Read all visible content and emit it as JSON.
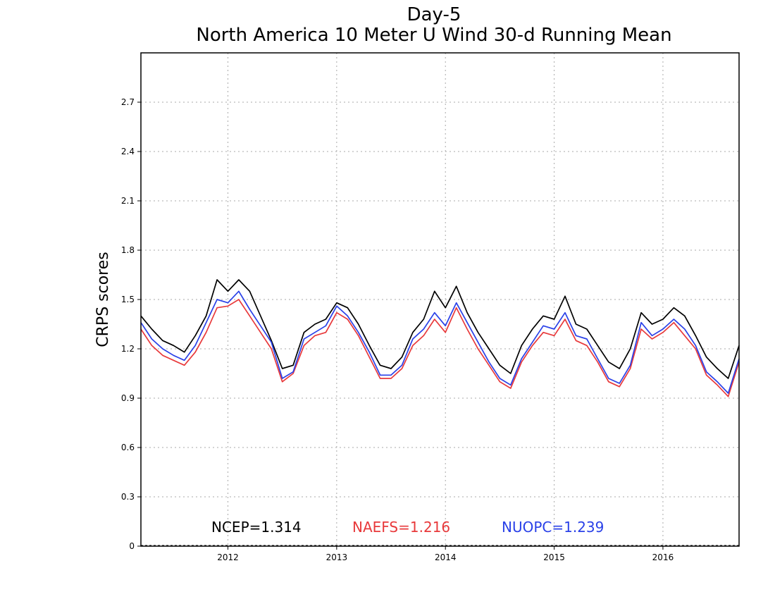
{
  "chart_data": {
    "type": "line",
    "title": "Day-5",
    "subtitle": "North America 10 Meter U Wind 30-d Running Mean",
    "xlabel": "",
    "ylabel": "CRPS scores",
    "x_tick_labels": [
      "2012",
      "2013",
      "2014",
      "2015",
      "2016"
    ],
    "x_tick_values": [
      2012.0,
      2013.0,
      2014.0,
      2015.0,
      2016.0
    ],
    "xlim": [
      2011.2,
      2016.7
    ],
    "ylim": [
      0,
      3.0
    ],
    "y_tick_labels": [
      "0",
      "0.3",
      "0.6",
      "0.9",
      "1.2",
      "1.5",
      "1.8",
      "2.1",
      "2.4",
      "2.7"
    ],
    "y_tick_values": [
      0,
      0.3,
      0.6,
      0.9,
      1.2,
      1.5,
      1.8,
      2.1,
      2.4,
      2.7
    ],
    "grid": true,
    "legend_placement": "bottom",
    "x": [
      2011.2,
      2011.3,
      2011.4,
      2011.5,
      2011.6,
      2011.7,
      2011.8,
      2011.9,
      2012.0,
      2012.1,
      2012.2,
      2012.3,
      2012.4,
      2012.5,
      2012.6,
      2012.7,
      2012.8,
      2012.9,
      2013.0,
      2013.1,
      2013.2,
      2013.3,
      2013.4,
      2013.5,
      2013.6,
      2013.7,
      2013.8,
      2013.9,
      2014.0,
      2014.1,
      2014.2,
      2014.3,
      2014.4,
      2014.5,
      2014.6,
      2014.7,
      2014.8,
      2014.9,
      2015.0,
      2015.1,
      2015.2,
      2015.3,
      2015.4,
      2015.5,
      2015.6,
      2015.7,
      2015.8,
      2015.9,
      2016.0,
      2016.1,
      2016.2,
      2016.3,
      2016.4,
      2016.5,
      2016.6,
      2016.7
    ],
    "series": [
      {
        "name": "NCEP",
        "color": "#000000",
        "values": [
          1.4,
          1.32,
          1.25,
          1.22,
          1.18,
          1.28,
          1.4,
          1.62,
          1.55,
          1.62,
          1.55,
          1.4,
          1.25,
          1.08,
          1.1,
          1.3,
          1.35,
          1.38,
          1.48,
          1.45,
          1.35,
          1.22,
          1.1,
          1.08,
          1.15,
          1.3,
          1.38,
          1.55,
          1.45,
          1.58,
          1.42,
          1.3,
          1.2,
          1.1,
          1.05,
          1.22,
          1.32,
          1.4,
          1.38,
          1.52,
          1.35,
          1.32,
          1.22,
          1.12,
          1.08,
          1.2,
          1.42,
          1.35,
          1.38,
          1.45,
          1.4,
          1.28,
          1.15,
          1.08,
          1.02,
          1.22
        ]
      },
      {
        "name": "NAEFS",
        "color": "#e8393b",
        "values": [
          1.32,
          1.22,
          1.16,
          1.13,
          1.1,
          1.18,
          1.3,
          1.45,
          1.46,
          1.5,
          1.4,
          1.3,
          1.2,
          1.0,
          1.05,
          1.22,
          1.28,
          1.3,
          1.42,
          1.38,
          1.28,
          1.15,
          1.02,
          1.02,
          1.08,
          1.22,
          1.28,
          1.38,
          1.3,
          1.45,
          1.32,
          1.2,
          1.1,
          1.0,
          0.96,
          1.12,
          1.22,
          1.3,
          1.28,
          1.38,
          1.25,
          1.22,
          1.12,
          1.0,
          0.97,
          1.08,
          1.32,
          1.26,
          1.3,
          1.36,
          1.28,
          1.2,
          1.04,
          0.98,
          0.91,
          1.12
        ]
      },
      {
        "name": "NUOPC",
        "color": "#2a41e8",
        "values": [
          1.36,
          1.26,
          1.2,
          1.16,
          1.13,
          1.22,
          1.36,
          1.5,
          1.48,
          1.55,
          1.44,
          1.34,
          1.24,
          1.02,
          1.06,
          1.26,
          1.3,
          1.34,
          1.46,
          1.4,
          1.3,
          1.18,
          1.04,
          1.04,
          1.1,
          1.26,
          1.32,
          1.42,
          1.34,
          1.48,
          1.36,
          1.24,
          1.12,
          1.02,
          0.98,
          1.14,
          1.24,
          1.34,
          1.32,
          1.42,
          1.28,
          1.26,
          1.14,
          1.02,
          0.99,
          1.1,
          1.36,
          1.28,
          1.32,
          1.38,
          1.32,
          1.22,
          1.06,
          1.0,
          0.93,
          1.14
        ]
      }
    ],
    "legend": [
      {
        "text": "NCEP=1.314",
        "color": "#000000"
      },
      {
        "text": "NAEFS=1.216",
        "color": "#e8393b"
      },
      {
        "text": "NUOPC=1.239",
        "color": "#2a41e8"
      }
    ]
  }
}
